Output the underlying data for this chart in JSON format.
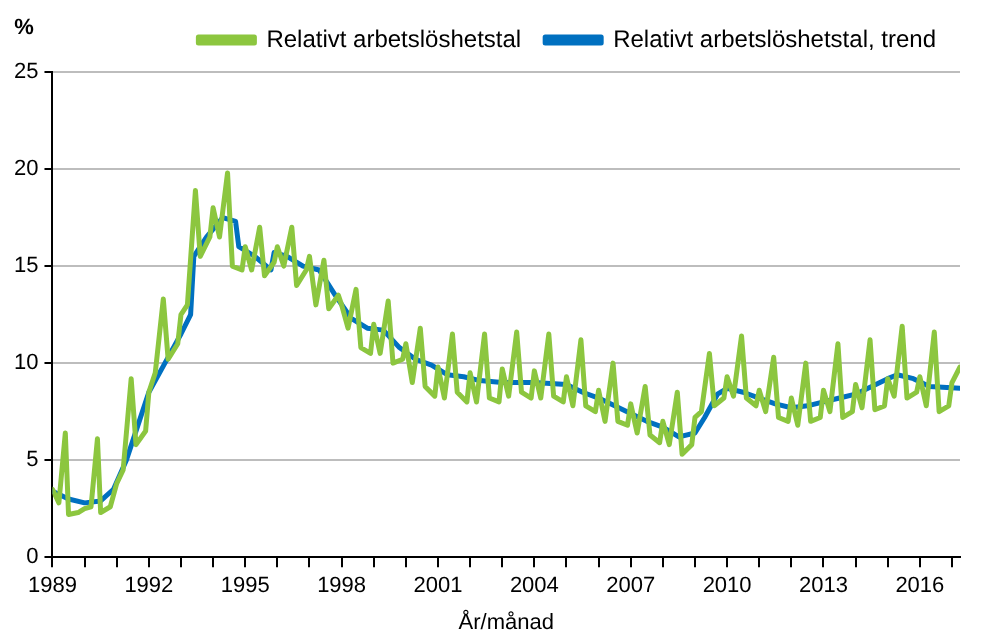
{
  "chart_data": {
    "type": "line",
    "xlabel": "År/månad",
    "ylabel": "%",
    "xlim": [
      1989,
      2017.25
    ],
    "ylim": [
      0,
      25
    ],
    "xticks": [
      1989,
      {
        "value": 1990,
        "label": null
      },
      {
        "value": 1991,
        "label": null
      },
      1992,
      {
        "value": 1993,
        "label": null
      },
      {
        "value": 1994,
        "label": null
      },
      1995,
      {
        "value": 1996,
        "label": null
      },
      {
        "value": 1997,
        "label": null
      },
      1998,
      {
        "value": 1999,
        "label": null
      },
      {
        "value": 2000,
        "label": null
      },
      2001,
      {
        "value": 2002,
        "label": null
      },
      {
        "value": 2003,
        "label": null
      },
      2004,
      {
        "value": 2005,
        "label": null
      },
      {
        "value": 2006,
        "label": null
      },
      2007,
      {
        "value": 2008,
        "label": null
      },
      {
        "value": 2009,
        "label": null
      },
      2010,
      {
        "value": 2011,
        "label": null
      },
      {
        "value": 2012,
        "label": null
      },
      2013,
      {
        "value": 2014,
        "label": null
      },
      {
        "value": 2015,
        "label": null
      },
      2016,
      {
        "value": 2017,
        "label": null
      }
    ],
    "yticks": [
      0,
      5,
      10,
      15,
      20,
      25
    ],
    "grid": "y",
    "legend": "top",
    "marker": "none",
    "line_style": "solid",
    "series": [
      {
        "name": "Relativt arbetslöshetstal",
        "color": "#8cc63f",
        "x": [
          1989.0,
          1989.2,
          1989.4,
          1989.5,
          1989.8,
          1990.0,
          1990.2,
          1990.4,
          1990.5,
          1990.8,
          1991.0,
          1991.2,
          1991.45,
          1991.6,
          1991.9,
          1992.0,
          1992.2,
          1992.45,
          1992.6,
          1992.9,
          1993.0,
          1993.2,
          1993.45,
          1993.6,
          1993.9,
          1994.0,
          1994.2,
          1994.45,
          1994.6,
          1994.9,
          1995.0,
          1995.2,
          1995.45,
          1995.6,
          1995.9,
          1996.0,
          1996.2,
          1996.45,
          1996.6,
          1996.9,
          1997.0,
          1997.2,
          1997.45,
          1997.6,
          1997.9,
          1998.0,
          1998.2,
          1998.45,
          1998.6,
          1998.9,
          1999.0,
          1999.2,
          1999.45,
          1999.6,
          1999.9,
          2000.0,
          2000.2,
          2000.45,
          2000.6,
          2000.9,
          2001.0,
          2001.2,
          2001.45,
          2001.6,
          2001.9,
          2002.0,
          2002.2,
          2002.45,
          2002.6,
          2002.9,
          2003.0,
          2003.2,
          2003.45,
          2003.6,
          2003.9,
          2004.0,
          2004.2,
          2004.45,
          2004.6,
          2004.9,
          2005.0,
          2005.2,
          2005.45,
          2005.6,
          2005.9,
          2006.0,
          2006.2,
          2006.45,
          2006.6,
          2006.9,
          2007.0,
          2007.2,
          2007.45,
          2007.6,
          2007.9,
          2008.0,
          2008.2,
          2008.45,
          2008.6,
          2008.9,
          2009.0,
          2009.2,
          2009.45,
          2009.6,
          2009.9,
          2010.0,
          2010.2,
          2010.45,
          2010.6,
          2010.9,
          2011.0,
          2011.2,
          2011.45,
          2011.6,
          2011.9,
          2012.0,
          2012.2,
          2012.45,
          2012.6,
          2012.9,
          2013.0,
          2013.2,
          2013.45,
          2013.6,
          2013.9,
          2014.0,
          2014.2,
          2014.45,
          2014.6,
          2014.9,
          2015.0,
          2015.2,
          2015.45,
          2015.6,
          2015.9,
          2016.0,
          2016.2,
          2016.45,
          2016.6,
          2016.9,
          2017.0,
          2017.25
        ],
        "values": [
          3.5,
          2.8,
          6.4,
          2.2,
          2.3,
          2.5,
          2.6,
          6.1,
          2.3,
          2.6,
          3.8,
          4.5,
          9.2,
          5.8,
          6.5,
          8.5,
          9.5,
          13.3,
          10.2,
          11.0,
          12.5,
          13.0,
          18.9,
          15.5,
          16.5,
          18.0,
          16.5,
          19.8,
          15.0,
          14.8,
          16.0,
          14.8,
          17.0,
          14.5,
          15.2,
          16.0,
          15.0,
          17.0,
          14.0,
          14.8,
          15.5,
          13.0,
          15.3,
          12.8,
          13.5,
          13.0,
          11.8,
          13.8,
          10.8,
          10.5,
          12.0,
          10.5,
          13.2,
          10.0,
          10.2,
          11.0,
          9.0,
          11.8,
          8.8,
          8.3,
          9.8,
          8.2,
          11.5,
          8.5,
          8.0,
          9.5,
          8.0,
          11.5,
          8.2,
          8.0,
          9.7,
          8.3,
          11.6,
          8.5,
          8.2,
          9.6,
          8.2,
          11.5,
          8.3,
          8.0,
          9.3,
          7.8,
          11.2,
          7.8,
          7.5,
          8.6,
          7.0,
          10.0,
          7.0,
          6.8,
          7.9,
          6.4,
          8.8,
          6.3,
          5.9,
          7.0,
          5.8,
          8.5,
          5.3,
          5.8,
          7.2,
          7.5,
          10.5,
          7.8,
          8.2,
          9.3,
          8.3,
          11.4,
          8.2,
          7.8,
          8.6,
          7.5,
          10.3,
          7.2,
          7.0,
          8.2,
          6.8,
          10.0,
          7.0,
          7.2,
          8.6,
          7.5,
          11.0,
          7.2,
          7.5,
          8.9,
          7.7,
          11.2,
          7.6,
          7.8,
          9.2,
          8.3,
          11.9,
          8.2,
          8.5,
          9.3,
          7.8,
          11.6,
          7.5,
          7.8,
          9.0,
          9.8
        ]
      },
      {
        "name": "Relativt arbetslöshetstal, trend",
        "color": "#0070c0",
        "x": [
          1989.0,
          1989.5,
          1990.0,
          1990.5,
          1990.9,
          1991.3,
          1991.7,
          1992.0,
          1992.5,
          1993.0,
          1993.3,
          1993.4,
          1993.8,
          1994.3,
          1994.7,
          1994.8,
          1995.3,
          1995.8,
          1995.9,
          1996.3,
          1996.8,
          1997.3,
          1997.8,
          1998.3,
          1998.8,
          1999.3,
          1999.8,
          2000.3,
          2000.8,
          2001.3,
          2001.8,
          2002.3,
          2003.0,
          2004.0,
          2005.0,
          2005.5,
          2006.0,
          2006.5,
          2007.0,
          2007.5,
          2008.0,
          2008.5,
          2009.0,
          2009.3,
          2009.7,
          2010.0,
          2010.5,
          2011.0,
          2011.5,
          2012.0,
          2012.5,
          2013.0,
          2013.5,
          2014.0,
          2014.5,
          2015.0,
          2015.3,
          2015.8,
          2016.3,
          2017.25
        ],
        "values": [
          3.4,
          3.0,
          2.8,
          2.9,
          3.5,
          5.0,
          7.0,
          8.5,
          10.0,
          11.5,
          12.5,
          15.5,
          16.5,
          17.5,
          17.3,
          16.0,
          15.5,
          14.8,
          15.7,
          15.5,
          15.0,
          14.8,
          13.5,
          12.3,
          11.8,
          11.7,
          10.8,
          10.2,
          9.9,
          9.4,
          9.3,
          9.1,
          9.0,
          9.0,
          8.9,
          8.5,
          8.2,
          7.8,
          7.4,
          7.0,
          6.7,
          6.2,
          6.4,
          7.2,
          8.4,
          8.7,
          8.5,
          8.2,
          7.9,
          7.7,
          7.8,
          8.0,
          8.2,
          8.4,
          8.8,
          9.2,
          9.4,
          9.2,
          8.8,
          8.7
        ]
      }
    ]
  }
}
